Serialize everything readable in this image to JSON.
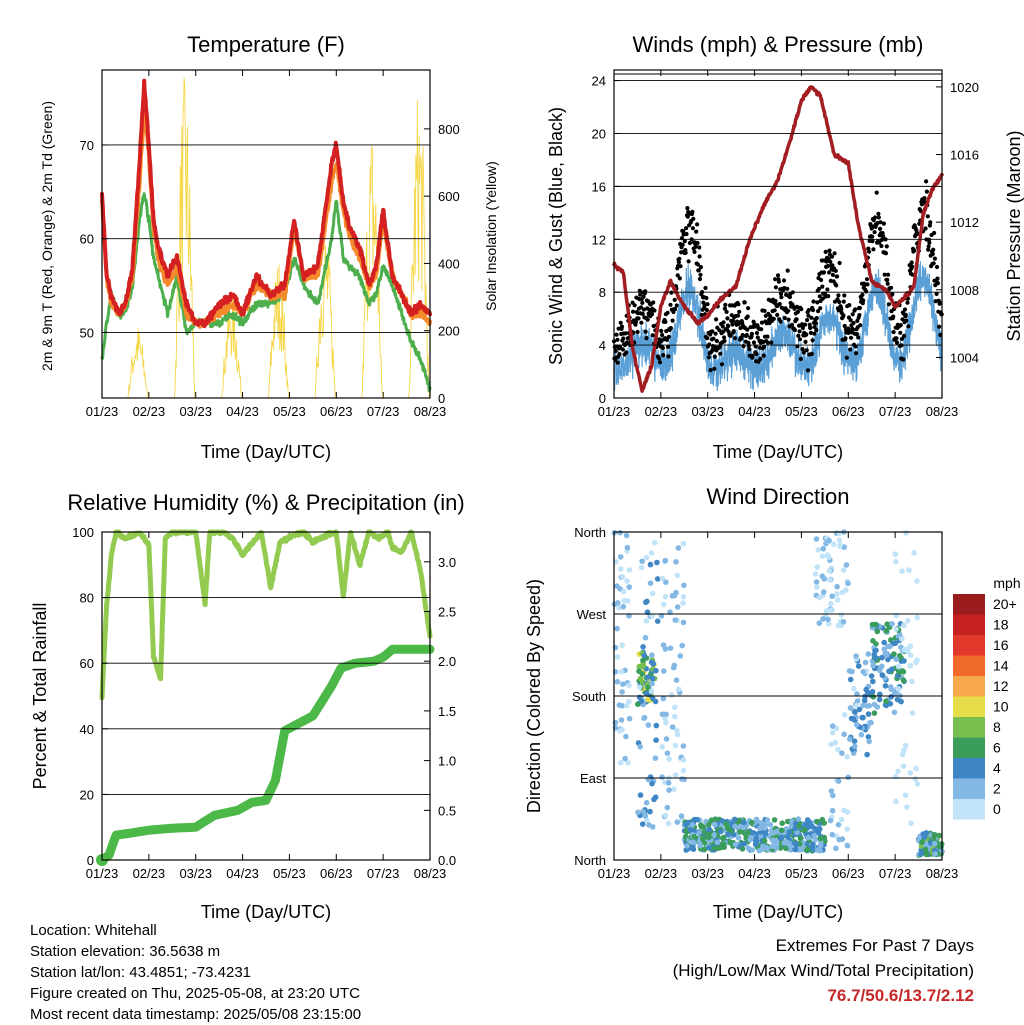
{
  "colors": {
    "t2m": "#d42020",
    "t9m": "#f48a2a",
    "td": "#4cae4c",
    "solar": "#f7d74a",
    "wind": "#5a9fd6",
    "gust": "#000000",
    "pressure": "#a21d21",
    "rh": "#93cb51",
    "rain": "#4cb847"
  },
  "info": {
    "location": "Location: Whitehall",
    "elevation": "Station elevation: 36.5638 m",
    "latlon": "Station lat/lon: 43.4851; -73.4231",
    "created": "Figure created on Thu, 2025-05-08, at 23:20 UTC",
    "recent": "Most recent data timestamp: 2025/05/08 23:15:00"
  },
  "extremes": {
    "title": "Extremes For Past 7 Days",
    "subtitle": "(High/Low/Max Wind/Total Precipitation)",
    "values": "76.7/50.6/13.7/2.12"
  },
  "chart_data": [
    {
      "type": "line",
      "title": "Temperature (F)",
      "xlabel": "Time (Day/UTC)",
      "ylabel": "2m & 9m T (Red, Orange) & 2m Td (Green)",
      "y2label": "Solar Insolation (Yellow)",
      "xticks": [
        "01/23",
        "02/23",
        "03/23",
        "04/23",
        "05/23",
        "06/23",
        "07/23",
        "08/23"
      ],
      "xlim": [
        0,
        7
      ],
      "ylim": [
        43,
        78
      ],
      "y2lim": [
        0,
        975
      ],
      "yticks": [
        "50",
        "60",
        "70"
      ],
      "y2ticks": [
        "0",
        "200",
        "400",
        "600",
        "800"
      ],
      "x": [
        0,
        0.1,
        0.2,
        0.35,
        0.5,
        0.65,
        0.8,
        0.9,
        1.0,
        1.1,
        1.2,
        1.4,
        1.6,
        1.8,
        2.0,
        2.2,
        2.5,
        2.8,
        3.0,
        3.3,
        3.6,
        3.9,
        4.1,
        4.3,
        4.6,
        4.9,
        5.0,
        5.15,
        5.3,
        5.5,
        5.7,
        5.85,
        6.0,
        6.2,
        6.4,
        6.6,
        6.8,
        7.0
      ],
      "series": [
        {
          "name": "2m T",
          "values": [
            65,
            56,
            54,
            52,
            53,
            57,
            68,
            76.7,
            70,
            62,
            59,
            56,
            58,
            53,
            51,
            51,
            53,
            54,
            52,
            56,
            54,
            55,
            62,
            56,
            57,
            68,
            70,
            64,
            61,
            59,
            55,
            57,
            63,
            56,
            54,
            52,
            53,
            52
          ]
        },
        {
          "name": "9m T",
          "values": [
            64,
            56,
            53,
            52,
            53,
            56,
            66,
            74,
            69,
            61,
            58,
            55,
            57,
            52,
            51,
            51,
            52,
            53,
            52,
            55,
            54,
            54,
            61,
            56,
            56,
            66,
            68,
            63,
            60,
            58,
            55,
            56,
            62,
            56,
            54,
            52,
            52,
            51
          ]
        },
        {
          "name": "2m Td",
          "values": [
            47,
            51,
            54,
            52,
            52,
            55,
            62,
            65,
            62,
            58,
            56,
            52,
            56,
            50,
            51,
            51,
            51,
            52,
            51,
            53,
            53,
            54,
            58,
            55,
            53,
            60,
            64,
            58,
            57,
            56,
            53,
            54,
            57,
            55,
            52,
            49,
            47,
            44
          ]
        }
      ],
      "solar": {
        "days": [
          0,
          1,
          2,
          3,
          4,
          5,
          6
        ],
        "peaks": [
          220,
          960,
          320,
          420,
          520,
          820,
          940
        ]
      }
    },
    {
      "type": "scatter",
      "title": "Winds (mph) & Pressure (mb)",
      "xlabel": "Time (Day/UTC)",
      "ylabel": "Sonic Wind & Gust (Blue, Black)",
      "y2label": "Station Pressure (Maroon)",
      "xticks": [
        "01/23",
        "02/23",
        "03/23",
        "04/23",
        "05/23",
        "06/23",
        "07/23",
        "08/23"
      ],
      "xlim": [
        0,
        7
      ],
      "ylim": [
        0,
        24.8
      ],
      "y2lim": [
        1001.6,
        1021
      ],
      "yticks": [
        "0",
        "4",
        "8",
        "12",
        "16",
        "20",
        "24"
      ],
      "y2ticks": [
        "1004",
        "1008",
        "1012",
        "1016",
        "1020"
      ],
      "pressure": {
        "x": [
          0,
          0.2,
          0.4,
          0.6,
          0.8,
          1.0,
          1.2,
          1.5,
          1.8,
          2.0,
          2.3,
          2.6,
          2.9,
          3.2,
          3.5,
          3.8,
          4.0,
          4.2,
          4.4,
          4.7,
          5.0,
          5.2,
          5.5,
          5.8,
          6.0,
          6.2,
          6.4,
          6.6,
          6.8,
          7.0
        ],
        "values": [
          1009.5,
          1009,
          1004.5,
          1002,
          1003.5,
          1007,
          1008.5,
          1007,
          1006,
          1006.5,
          1007.5,
          1008.2,
          1011,
          1013,
          1014.5,
          1017.2,
          1019.2,
          1020,
          1019.5,
          1016,
          1015.5,
          1012,
          1008.5,
          1008,
          1007,
          1007.5,
          1008.2,
          1012.5,
          1014,
          1014.8
        ]
      }
    },
    {
      "type": "line",
      "title": "Relative Humidity (%) & Precipitation (in)",
      "xlabel": "Time (Day/UTC)",
      "ylabel": "Percent & Total Rainfall",
      "xticks": [
        "01/23",
        "02/23",
        "03/23",
        "04/23",
        "05/23",
        "06/23",
        "07/23",
        "08/23"
      ],
      "xlim": [
        0,
        7
      ],
      "ylim": [
        0,
        100
      ],
      "y2lim": [
        0,
        3.3
      ],
      "yticks": [
        "0",
        "20",
        "40",
        "60",
        "80",
        "100"
      ],
      "y2ticks": [
        "0.0",
        "0.5",
        "1.0",
        "1.5",
        "2.0",
        "2.5",
        "3.0"
      ],
      "series": [
        {
          "name": "RH",
          "x": [
            0,
            0.1,
            0.2,
            0.3,
            0.5,
            0.8,
            1.0,
            1.1,
            1.25,
            1.35,
            1.5,
            1.8,
            2.0,
            2.2,
            2.3,
            2.6,
            2.8,
            3.0,
            3.4,
            3.6,
            3.8,
            4.1,
            4.3,
            4.5,
            4.8,
            5.0,
            5.15,
            5.3,
            5.5,
            5.7,
            5.9,
            6.1,
            6.2,
            6.4,
            6.6,
            6.8,
            7.0
          ],
          "values": [
            50,
            78,
            93,
            100,
            98,
            100,
            96,
            62,
            55,
            98,
            100,
            100,
            100,
            78,
            100,
            100,
            98,
            93,
            100,
            83,
            97,
            99,
            100,
            97,
            99,
            100,
            80,
            100,
            90,
            100,
            98,
            100,
            95,
            94,
            100,
            88,
            68
          ]
        },
        {
          "name": "Precipitation",
          "x": [
            0,
            0.15,
            0.3,
            0.6,
            1.0,
            1.5,
            2.0,
            2.4,
            2.9,
            3.2,
            3.5,
            3.7,
            3.9,
            4.1,
            4.5,
            4.9,
            5.1,
            5.4,
            5.8,
            6.0,
            6.2,
            6.6,
            7.0
          ],
          "values": [
            0,
            0.05,
            0.25,
            0.27,
            0.3,
            0.32,
            0.33,
            0.45,
            0.5,
            0.58,
            0.6,
            0.8,
            1.3,
            1.35,
            1.45,
            1.75,
            1.93,
            1.98,
            2.0,
            2.04,
            2.12,
            2.12,
            2.12
          ]
        }
      ]
    },
    {
      "type": "scatter",
      "title": "Wind Direction",
      "xlabel": "Time (Day/UTC)",
      "ylabel": "Direction (Colored By Speed)",
      "xticks": [
        "01/23",
        "02/23",
        "03/23",
        "04/23",
        "05/23",
        "06/23",
        "07/23",
        "08/23"
      ],
      "xlim": [
        0,
        7
      ],
      "ylim": [
        0,
        360
      ],
      "yticks": [
        "North",
        "East",
        "South",
        "West",
        "North"
      ],
      "legend": {
        "title": "mph",
        "labels": [
          "20+",
          "18",
          "16",
          "14",
          "12",
          "10",
          "8",
          "6",
          "4",
          "2",
          "0"
        ],
        "colors": [
          "#9b1c1c",
          "#c62121",
          "#e0382b",
          "#f06a2c",
          "#f8a94b",
          "#e6dd4a",
          "#78bf4f",
          "#3b9d5a",
          "#3f86c4",
          "#82b8e3",
          "#c0e3f8"
        ]
      }
    }
  ]
}
